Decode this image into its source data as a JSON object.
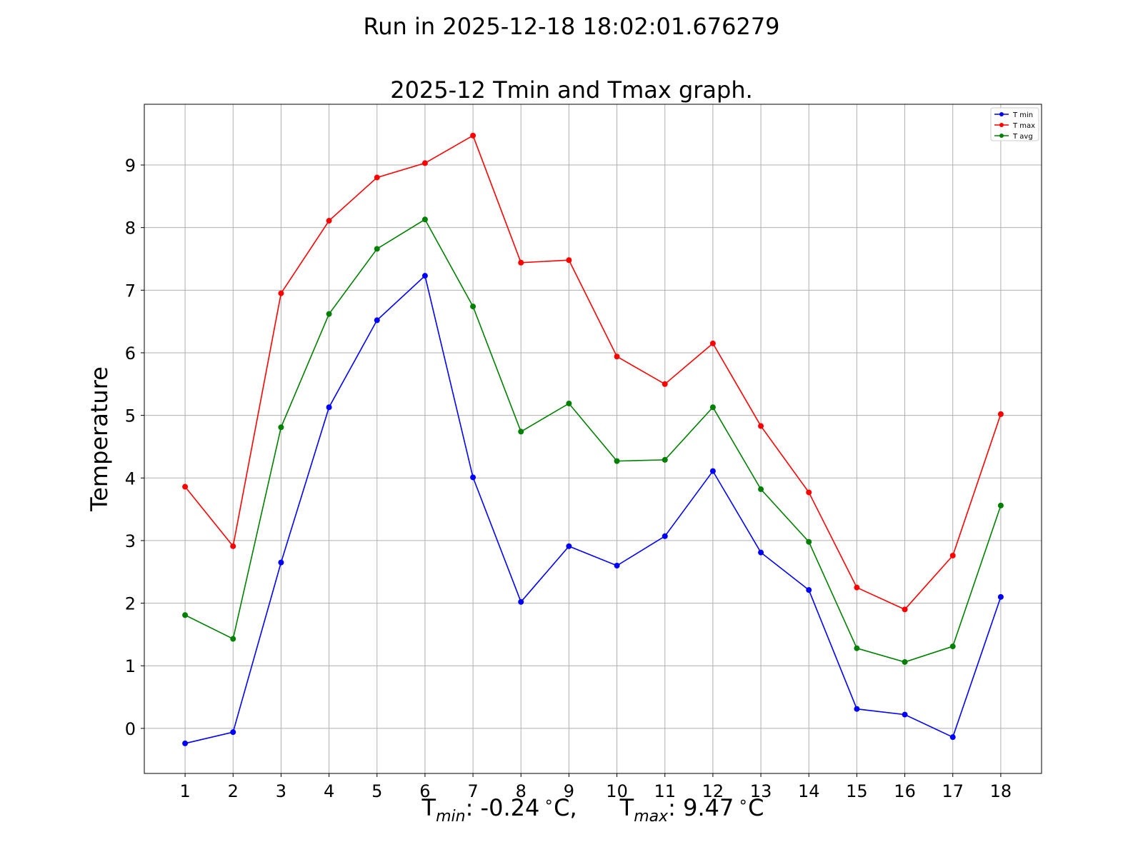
{
  "chart_data": {
    "type": "line",
    "suptitle": "Run in 2025-12-18 18:02:01.676279",
    "title": "2025-12 Tmin and Tmax graph.",
    "ylabel": "Temperature",
    "xlabel": {
      "tmin_label": "T",
      "tmin_sub": "min",
      "tmin_value": ": -0.24",
      "tmax_label": "T",
      "tmax_sub": "max",
      "tmax_value": ": 9.47",
      "degree": "∘",
      "unit": "C",
      "separator": ","
    },
    "x": [
      1,
      2,
      3,
      4,
      5,
      6,
      7,
      8,
      9,
      10,
      11,
      12,
      13,
      14,
      15,
      16,
      17,
      18
    ],
    "xlim": [
      0.15,
      18.85
    ],
    "ylim": [
      -0.72,
      9.97
    ],
    "yticks": [
      0,
      1,
      2,
      3,
      4,
      5,
      6,
      7,
      8,
      9
    ],
    "grid": true,
    "legend_position": "top-right",
    "series": [
      {
        "name": "T min",
        "color": "#0000ff",
        "values": [
          -0.24,
          -0.06,
          2.65,
          5.13,
          6.52,
          7.23,
          4.01,
          2.02,
          2.91,
          2.6,
          3.07,
          4.11,
          2.81,
          2.21,
          0.31,
          0.22,
          -0.14,
          2.1
        ]
      },
      {
        "name": "T max",
        "color": "#ff0000",
        "values": [
          3.86,
          2.91,
          6.95,
          8.11,
          8.8,
          9.03,
          9.47,
          7.44,
          7.48,
          5.94,
          5.5,
          6.15,
          4.83,
          3.77,
          2.25,
          1.9,
          2.76,
          5.02
        ]
      },
      {
        "name": "T avg",
        "color": "#008000",
        "values": [
          1.81,
          1.43,
          4.81,
          6.62,
          7.66,
          8.13,
          6.74,
          4.74,
          5.19,
          4.27,
          4.29,
          5.13,
          3.82,
          2.98,
          1.28,
          1.06,
          1.31,
          3.56
        ]
      }
    ]
  }
}
